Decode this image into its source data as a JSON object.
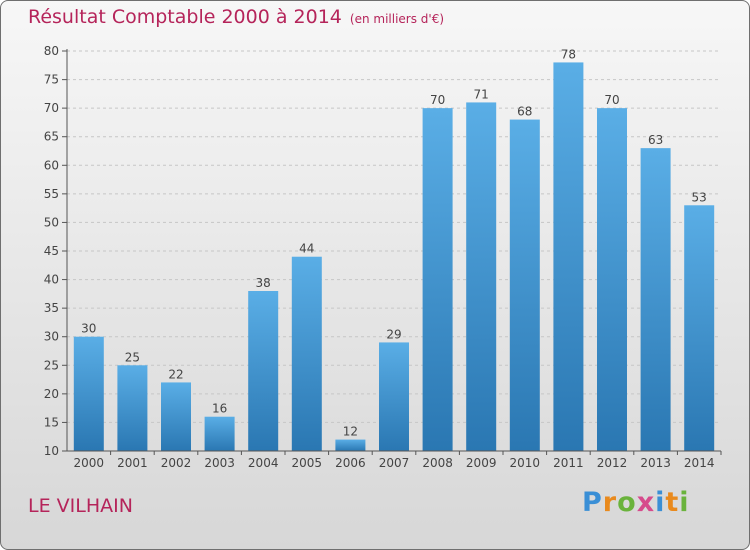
{
  "header": {
    "title": "Résultat Comptable 2000 à 2014",
    "unit": "(en milliers d'€)"
  },
  "footer": {
    "commune": "LE VILHAIN",
    "brand": "Proxiti"
  },
  "colors": {
    "title": "#b5245a",
    "bar_top": "#5aaee6",
    "bar_bottom": "#2a77b2"
  },
  "chart_data": {
    "type": "bar",
    "title": "Résultat Comptable 2000 à 2014",
    "ylabel": "(en milliers d'€)",
    "xlabel": "",
    "categories": [
      "2000",
      "2001",
      "2002",
      "2003",
      "2004",
      "2005",
      "2006",
      "2007",
      "2008",
      "2009",
      "2010",
      "2011",
      "2012",
      "2013",
      "2014"
    ],
    "values": [
      30,
      25,
      22,
      16,
      38,
      44,
      12,
      29,
      70,
      71,
      68,
      78,
      70,
      63,
      53
    ],
    "ylim": [
      10,
      80
    ],
    "yticks": [
      10,
      15,
      20,
      25,
      30,
      35,
      40,
      45,
      50,
      55,
      60,
      65,
      70,
      75,
      80
    ],
    "grid": true
  }
}
